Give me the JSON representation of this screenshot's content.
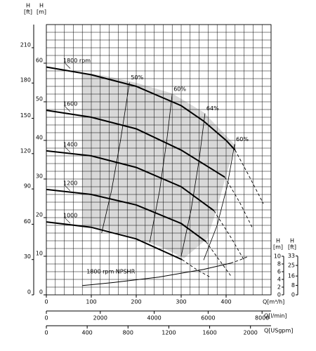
{
  "chart_data": {
    "type": "line",
    "x_label": "Q[m³/h]",
    "y_title": "H",
    "y_unit": "[m]",
    "xlim": [
      0,
      500
    ],
    "ylim": [
      0,
      70
    ],
    "xticks": [
      0,
      100,
      200,
      300,
      400
    ],
    "yticks": [
      0,
      10,
      20,
      30,
      40,
      50,
      60
    ],
    "xgrid": [
      0,
      20,
      40,
      60,
      80,
      100,
      120,
      140,
      160,
      180,
      200,
      220,
      240,
      260,
      280,
      300,
      320,
      340,
      360,
      380,
      400,
      420,
      440,
      460,
      480,
      500
    ],
    "ygrid": [
      0,
      2,
      4,
      6,
      8,
      10,
      12,
      14,
      16,
      18,
      20,
      22,
      24,
      26,
      28,
      30,
      32,
      34,
      36,
      38,
      40,
      42,
      44,
      46,
      48,
      50,
      52,
      54,
      56,
      58,
      60,
      62,
      64,
      66,
      68,
      70
    ],
    "color": "#000000",
    "shade_color": "#d9d9d9",
    "extra_axes": [
      {
        "side": "left",
        "title": "H",
        "unit": "[ft]",
        "lim": [
          0,
          229.66
        ],
        "ticks": [
          0,
          30,
          60,
          90,
          120,
          150,
          180,
          210
        ]
      },
      {
        "side": "right",
        "title": "H",
        "unit": "[m]",
        "lim": [
          0,
          10
        ],
        "ticks": [
          0,
          2,
          4,
          6,
          8,
          10
        ]
      },
      {
        "side": "right",
        "title": "H",
        "unit": "[ft]",
        "lim": [
          0,
          32.81
        ],
        "ticks": [
          0,
          8,
          16,
          25,
          33
        ]
      },
      {
        "side": "bottom",
        "title": "Q[l/min]",
        "lim": [
          0,
          8333.3
        ],
        "ticks": [
          0,
          2000,
          4000,
          6000,
          8000
        ]
      },
      {
        "side": "bottom",
        "title": "Q[USgpm]",
        "lim": [
          0,
          2201.5
        ],
        "ticks": [
          0,
          400,
          800,
          1200,
          1600,
          2000
        ]
      }
    ],
    "series": [
      {
        "name": "1800 rpm",
        "kind": "head",
        "x": [
          0,
          100,
          200,
          300,
          350,
          400,
          420
        ],
        "values": [
          59,
          57,
          54,
          49,
          45,
          40,
          37.5
        ]
      },
      {
        "kind": "dash",
        "x": [
          420,
          450,
          483
        ],
        "values": [
          37.5,
          31,
          23.6
        ]
      },
      {
        "name": "1600",
        "kind": "head",
        "x": [
          0,
          100,
          200,
          300,
          397
        ],
        "values": [
          47.8,
          46,
          43,
          37.5,
          30.5
        ]
      },
      {
        "kind": "dash",
        "x": [
          397,
          430,
          460
        ],
        "values": [
          30.5,
          24,
          17
        ]
      },
      {
        "name": "1400",
        "kind": "head",
        "x": [
          0,
          100,
          200,
          300,
          373
        ],
        "values": [
          37.3,
          36,
          33,
          28,
          21.8
        ]
      },
      {
        "kind": "dash",
        "x": [
          373,
          410,
          440
        ],
        "values": [
          21.8,
          15,
          9
        ]
      },
      {
        "name": "1200",
        "kind": "head",
        "x": [
          0,
          100,
          200,
          300,
          355
        ],
        "values": [
          27.3,
          26,
          23.3,
          18.5,
          13.8
        ]
      },
      {
        "kind": "dash",
        "x": [
          355,
          385,
          410
        ],
        "values": [
          13.8,
          9,
          5
        ]
      },
      {
        "name": "1000",
        "kind": "head",
        "x": [
          0,
          100,
          200,
          302
        ],
        "values": [
          18.9,
          17.5,
          14.5,
          9.1
        ]
      },
      {
        "kind": "dash",
        "x": [
          302,
          335,
          366
        ],
        "values": [
          9.1,
          6.5,
          4.5
        ]
      },
      {
        "name": "1800 rpm NPSHR",
        "kind": "npsh",
        "x": [
          80,
          150,
          250,
          350,
          410
        ],
        "values": [
          2.4,
          3.2,
          4.6,
          6.6,
          8.2
        ]
      },
      {
        "kind": "dash",
        "x": [
          410,
          430,
          450
        ],
        "values": [
          8.2,
          9,
          10
        ]
      },
      {
        "name": "50%",
        "kind": "eff",
        "x": [
          185,
          165,
          145,
          123
        ],
        "values": [
          55,
          40,
          27,
          16
        ]
      },
      {
        "name": "60%",
        "kind": "eff",
        "x": [
          280,
          268,
          252,
          230
        ],
        "values": [
          52,
          40,
          27,
          13.6
        ]
      },
      {
        "name": "64%",
        "kind": "eff",
        "x": [
          353,
          340,
          322,
          300
        ],
        "values": [
          47,
          35,
          22,
          10
        ]
      },
      {
        "name": "60%",
        "kind": "eff",
        "x": [
          419,
          402,
          380,
          350
        ],
        "values": [
          39,
          28,
          18,
          9
        ]
      }
    ]
  }
}
